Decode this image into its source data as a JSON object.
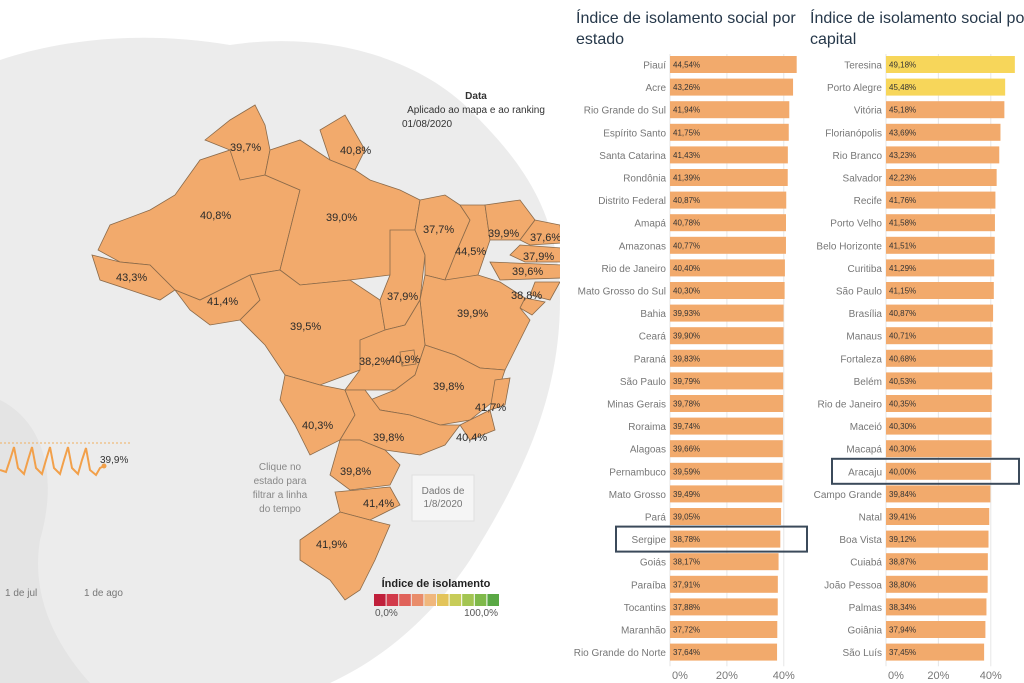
{
  "map": {
    "date_title": "Data",
    "date_subtitle": "Aplicado ao mapa e ao ranking",
    "date_value": "01/08/2020",
    "click_note": [
      "Clique no",
      "estado para",
      "filtrar a linha",
      "do tempo"
    ],
    "data_note": [
      "Dados de",
      "1/8/2020"
    ],
    "legend_title": "Índice de isolamento",
    "legend_min": "0,0%",
    "legend_max": "100,0%",
    "legend_colors": [
      "#c0203b",
      "#d23a4a",
      "#e0625a",
      "#e98c6a",
      "#f0b77c",
      "#e3c45a",
      "#c7cc58",
      "#a3c552",
      "#7fb94a",
      "#5aa845"
    ],
    "state_fill": "#f2aa6c",
    "state_stroke": "#8a6a4a",
    "state_labels": [
      "39,7%",
      "40,8%",
      "40,8%",
      "39,0%",
      "43,3%",
      "37,7%",
      "39,9%",
      "37,6%",
      "44,5%",
      "37,9%",
      "39,6%",
      "38,8%",
      "41,4%",
      "37,9%",
      "39,5%",
      "39,9%",
      "38,2%",
      "40,9%",
      "39,8%",
      "41,7%",
      "40,3%",
      "40,4%",
      "39,8%",
      "39,8%",
      "41,4%",
      "41,9%"
    ],
    "timeline_value": "39,9%",
    "timeline_ticks": [
      "1 de jul",
      "1 de ago"
    ]
  },
  "chart_data": [
    {
      "type": "bar",
      "orientation": "horizontal",
      "title": "Índice de isolamento social por estado",
      "categories": [
        "Piauí",
        "Acre",
        "Rio Grande do Sul",
        "Espírito Santo",
        "Santa Catarina",
        "Rondônia",
        "Distrito Federal",
        "Amapá",
        "Amazonas",
        "Rio de Janeiro",
        "Mato Grosso do Sul",
        "Bahia",
        "Ceará",
        "Paraná",
        "São Paulo",
        "Minas Gerais",
        "Roraima",
        "Alagoas",
        "Pernambuco",
        "Mato Grosso",
        "Pará",
        "Sergipe",
        "Goiás",
        "Paraíba",
        "Tocantins",
        "Maranhão",
        "Rio Grande do Norte"
      ],
      "values": [
        44.54,
        43.26,
        41.94,
        41.75,
        41.43,
        41.39,
        40.87,
        40.78,
        40.77,
        40.4,
        40.3,
        39.93,
        39.9,
        39.83,
        39.79,
        39.78,
        39.74,
        39.66,
        39.59,
        39.49,
        39.05,
        38.78,
        38.17,
        37.91,
        37.88,
        37.72,
        37.64
      ],
      "value_labels": [
        "44,54%",
        "43,26%",
        "41,94%",
        "41,75%",
        "41,43%",
        "41,39%",
        "40,87%",
        "40,78%",
        "40,77%",
        "40,40%",
        "40,30%",
        "39,93%",
        "39,90%",
        "39,83%",
        "39,79%",
        "39,78%",
        "39,74%",
        "39,66%",
        "39,59%",
        "39,49%",
        "39,05%",
        "38,78%",
        "38,17%",
        "37,91%",
        "37,88%",
        "37,72%",
        "37,64%"
      ],
      "highlight": [
        "Sergipe"
      ],
      "bar_color": "#f2aa6c",
      "xticks": [
        "0%",
        "20%",
        "40%"
      ],
      "xlim": [
        0,
        45
      ]
    },
    {
      "type": "bar",
      "orientation": "horizontal",
      "title": "Índice de isolamento social por capital",
      "categories": [
        "Teresina",
        "Porto Alegre",
        "Vitória",
        "Florianópolis",
        "Rio Branco",
        "Salvador",
        "Recife",
        "Porto Velho",
        "Belo Horizonte",
        "Curitiba",
        "São Paulo",
        "Brasília",
        "Manaus",
        "Fortaleza",
        "Belém",
        "Rio de Janeiro",
        "Maceió",
        "Macapá",
        "Aracaju",
        "Campo Grande",
        "Natal",
        "Boa Vista",
        "Cuiabá",
        "João Pessoa",
        "Palmas",
        "Goiânia",
        "São Luís"
      ],
      "values": [
        49.18,
        45.48,
        45.18,
        43.69,
        43.23,
        42.23,
        41.76,
        41.58,
        41.51,
        41.29,
        41.15,
        40.87,
        40.71,
        40.68,
        40.53,
        40.35,
        40.3,
        40.3,
        40.0,
        39.84,
        39.41,
        39.12,
        38.87,
        38.8,
        38.34,
        37.94,
        37.45
      ],
      "value_labels": [
        "49,18%",
        "45,48%",
        "45,18%",
        "43,69%",
        "43,23%",
        "42,23%",
        "41,76%",
        "41,58%",
        "41,51%",
        "41,29%",
        "41,15%",
        "40,87%",
        "40,71%",
        "40,68%",
        "40,53%",
        "40,35%",
        "40,30%",
        "40,30%",
        "40,00%",
        "39,84%",
        "39,41%",
        "39,12%",
        "38,87%",
        "38,80%",
        "38,34%",
        "37,94%",
        "37,45%"
      ],
      "highlight": [
        "Aracaju"
      ],
      "bar_color": "#f2aa6c",
      "top_colors": [
        "#f7d65a",
        "#f7d65a"
      ],
      "xticks": [
        "0%",
        "20%",
        "40%"
      ],
      "xlim": [
        0,
        50
      ]
    }
  ]
}
